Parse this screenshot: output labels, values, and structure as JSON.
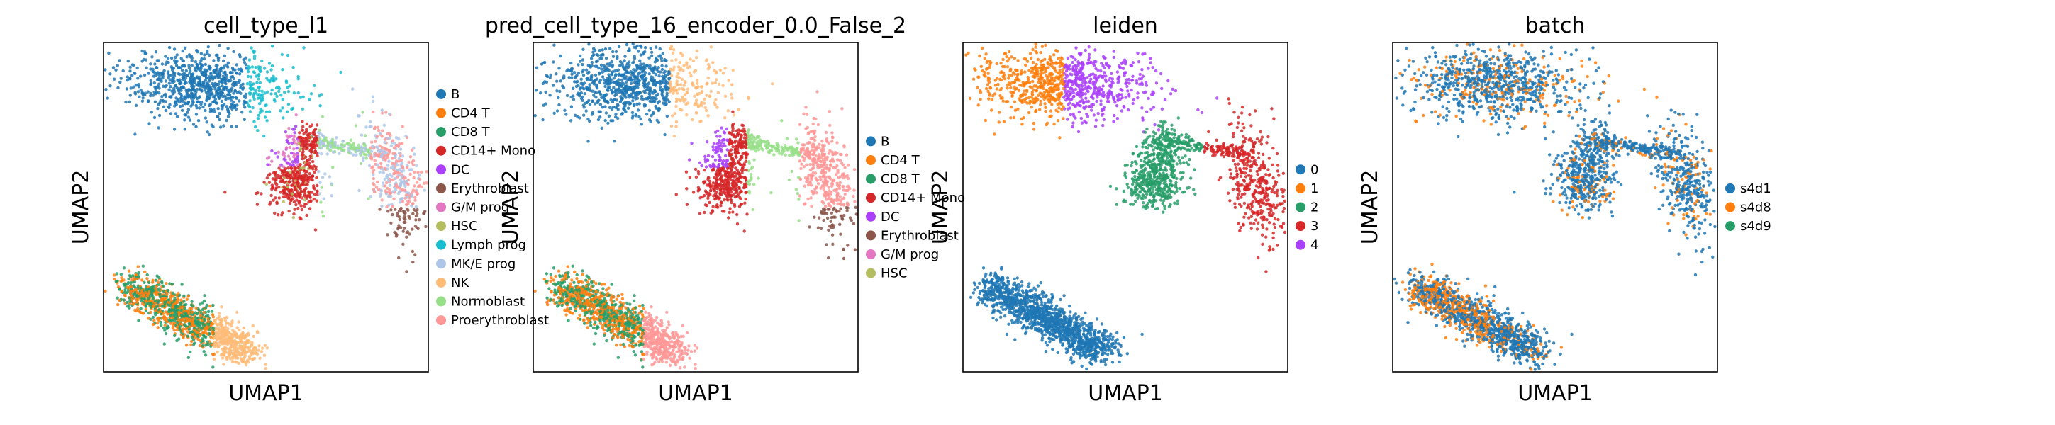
{
  "chart_data": [
    {
      "type": "scatter",
      "title": "cell_type_l1",
      "xlabel": "UMAP1",
      "ylabel": "UMAP2",
      "grid": false,
      "legend_position": "right",
      "legend": [
        {
          "name": "B",
          "color": "#1f77b4"
        },
        {
          "name": "CD4 T",
          "color": "#ff7f0e"
        },
        {
          "name": "CD8 T",
          "color": "#279e68"
        },
        {
          "name": "CD14+ Mono",
          "color": "#d62728"
        },
        {
          "name": "DC",
          "color": "#aa40fc"
        },
        {
          "name": "Erythroblast",
          "color": "#8c564b"
        },
        {
          "name": "G/M prog",
          "color": "#e377c2"
        },
        {
          "name": "HSC",
          "color": "#b5bd61"
        },
        {
          "name": "Lymph prog",
          "color": "#17becf"
        },
        {
          "name": "MK/E prog",
          "color": "#aec7e8"
        },
        {
          "name": "NK",
          "color": "#ffbb78"
        },
        {
          "name": "Normoblast",
          "color": "#98df8a"
        },
        {
          "name": "Proerythroblast",
          "color": "#ff9896"
        }
      ]
    },
    {
      "type": "scatter",
      "title": "pred_cell_type_16_encoder_0.0_False_2",
      "xlabel": "UMAP1",
      "ylabel": "UMAP2",
      "grid": false,
      "legend_position": "right",
      "legend": [
        {
          "name": "B",
          "color": "#1f77b4"
        },
        {
          "name": "CD4 T",
          "color": "#ff7f0e"
        },
        {
          "name": "CD8 T",
          "color": "#279e68"
        },
        {
          "name": "CD14+ Mono",
          "color": "#d62728"
        },
        {
          "name": "DC",
          "color": "#aa40fc"
        },
        {
          "name": "Erythroblast",
          "color": "#8c564b"
        },
        {
          "name": "G/M prog",
          "color": "#e377c2"
        },
        {
          "name": "HSC",
          "color": "#b5bd61"
        }
      ]
    },
    {
      "type": "scatter",
      "title": "leiden",
      "xlabel": "UMAP1",
      "ylabel": "UMAP2",
      "grid": false,
      "legend_position": "right",
      "legend": [
        {
          "name": "0",
          "color": "#1f77b4"
        },
        {
          "name": "1",
          "color": "#ff7f0e"
        },
        {
          "name": "2",
          "color": "#279e68"
        },
        {
          "name": "3",
          "color": "#d62728"
        },
        {
          "name": "4",
          "color": "#aa40fc"
        }
      ]
    },
    {
      "type": "scatter",
      "title": "batch",
      "xlabel": "UMAP1",
      "ylabel": "UMAP2",
      "grid": false,
      "legend_position": "right",
      "legend": [
        {
          "name": "s4d1",
          "color": "#1f77b4"
        },
        {
          "name": "s4d8",
          "color": "#ff7f0e"
        },
        {
          "name": "s4d9",
          "color": "#279e68"
        }
      ]
    }
  ]
}
